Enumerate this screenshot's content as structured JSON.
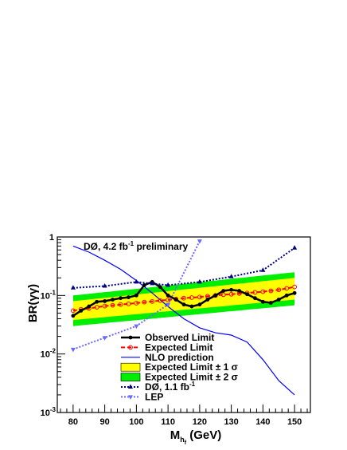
{
  "chart_data": {
    "type": "line",
    "title": "",
    "annotation": "DØ, 4.2 fb",
    "annotation_sup": "-1",
    "annotation_tail": " preliminary",
    "xlabel": "M",
    "xlabel_sub": "h",
    "xlabel_subsub": "f",
    "xlabel_tail": " (GeV)",
    "ylabel": "BR(γγ)",
    "xlim": [
      75,
      155
    ],
    "ylim": [
      0.001,
      1
    ],
    "yscale": "log",
    "x_ticks": [
      80,
      90,
      100,
      110,
      120,
      130,
      140,
      150
    ],
    "y_ticks": [
      {
        "value": 0.001,
        "base": "10",
        "exp": "-3"
      },
      {
        "value": 0.01,
        "base": "10",
        "exp": "-2"
      },
      {
        "value": 0.1,
        "base": "10",
        "exp": "-1"
      },
      {
        "value": 1,
        "base": "1",
        "exp": ""
      }
    ],
    "bands": [
      {
        "name": "Expected Limit ± 2 σ",
        "color": "#00ee00",
        "x": [
          80,
          150
        ],
        "lower": [
          0.03,
          0.068
        ],
        "upper": [
          0.1,
          0.25
        ]
      },
      {
        "name": "Expected Limit ± 1 σ",
        "color": "#ffff00",
        "x": [
          80,
          150
        ],
        "lower": [
          0.038,
          0.085
        ],
        "upper": [
          0.08,
          0.2
        ]
      }
    ],
    "series": [
      {
        "name": "NLO prediction",
        "color": "#0000ff",
        "style": "solid",
        "marker": "none",
        "x": [
          80,
          85,
          90,
          95,
          100,
          105,
          110,
          115,
          120,
          125,
          130,
          135,
          140,
          145,
          150
        ],
        "values": [
          0.7,
          0.55,
          0.4,
          0.28,
          0.18,
          0.11,
          0.065,
          0.04,
          0.028,
          0.023,
          0.021,
          0.016,
          0.008,
          0.0035,
          0.002
        ]
      },
      {
        "name": "Expected Limit",
        "color": "#ff0000",
        "style": "dashed",
        "marker": "circle",
        "x": [
          80,
          82.5,
          85,
          87.5,
          90,
          92.5,
          95,
          97.5,
          100,
          102.5,
          105,
          107.5,
          110,
          112.5,
          115,
          117.5,
          120,
          122.5,
          125,
          127.5,
          130,
          132.5,
          135,
          137.5,
          140,
          142.5,
          145,
          147.5,
          150
        ],
        "values": [
          0.055,
          0.058,
          0.06,
          0.063,
          0.066,
          0.068,
          0.07,
          0.072,
          0.074,
          0.077,
          0.079,
          0.082,
          0.084,
          0.087,
          0.09,
          0.092,
          0.094,
          0.097,
          0.1,
          0.103,
          0.105,
          0.108,
          0.11,
          0.113,
          0.116,
          0.12,
          0.125,
          0.132,
          0.14
        ]
      },
      {
        "name": "Observed Limit",
        "color": "#000000",
        "style": "solid",
        "marker": "dot",
        "x": [
          80,
          82.5,
          85,
          87.5,
          90,
          92.5,
          95,
          97.5,
          100,
          102.5,
          105,
          107.5,
          110,
          112.5,
          115,
          117.5,
          120,
          122.5,
          125,
          127.5,
          130,
          132.5,
          135,
          137.5,
          140,
          142.5,
          145,
          147.5,
          150
        ],
        "values": [
          0.045,
          0.055,
          0.065,
          0.078,
          0.08,
          0.085,
          0.09,
          0.093,
          0.1,
          0.15,
          0.17,
          0.14,
          0.1,
          0.085,
          0.07,
          0.065,
          0.07,
          0.085,
          0.1,
          0.12,
          0.125,
          0.12,
          0.105,
          0.09,
          0.078,
          0.075,
          0.085,
          0.1,
          0.11
        ]
      },
      {
        "name": "DØ, 1.1 fb",
        "name_sup": "-1",
        "color": "#000080",
        "style": "dotted",
        "marker": "triangle-up",
        "x": [
          80,
          90,
          100,
          105,
          110,
          120,
          130,
          140,
          150
        ],
        "values": [
          0.135,
          0.145,
          0.17,
          0.16,
          0.15,
          0.17,
          0.21,
          0.27,
          0.65
        ]
      },
      {
        "name": "LEP",
        "color": "#6a6aff",
        "style": "dotted",
        "marker": "triangle-down",
        "x": [
          80,
          90,
          100,
          110,
          120
        ],
        "values": [
          0.012,
          0.019,
          0.03,
          0.07,
          0.85
        ]
      }
    ],
    "legend": [
      {
        "label": "Observed Limit",
        "sup": "",
        "key": "observed"
      },
      {
        "label": "Expected Limit",
        "sup": "",
        "key": "expected"
      },
      {
        "label": "NLO prediction",
        "sup": "",
        "key": "nlo"
      },
      {
        "label": "Expected Limit ± 1 σ",
        "sup": "",
        "key": "band1"
      },
      {
        "label": "Expected Limit ± 2 σ",
        "sup": "",
        "key": "band2"
      },
      {
        "label": "DØ, 1.1 fb",
        "sup": "-1",
        "key": "d0"
      },
      {
        "label": "LEP",
        "sup": "",
        "key": "lep"
      }
    ],
    "legend_position": "bottom-right",
    "grid": false
  }
}
